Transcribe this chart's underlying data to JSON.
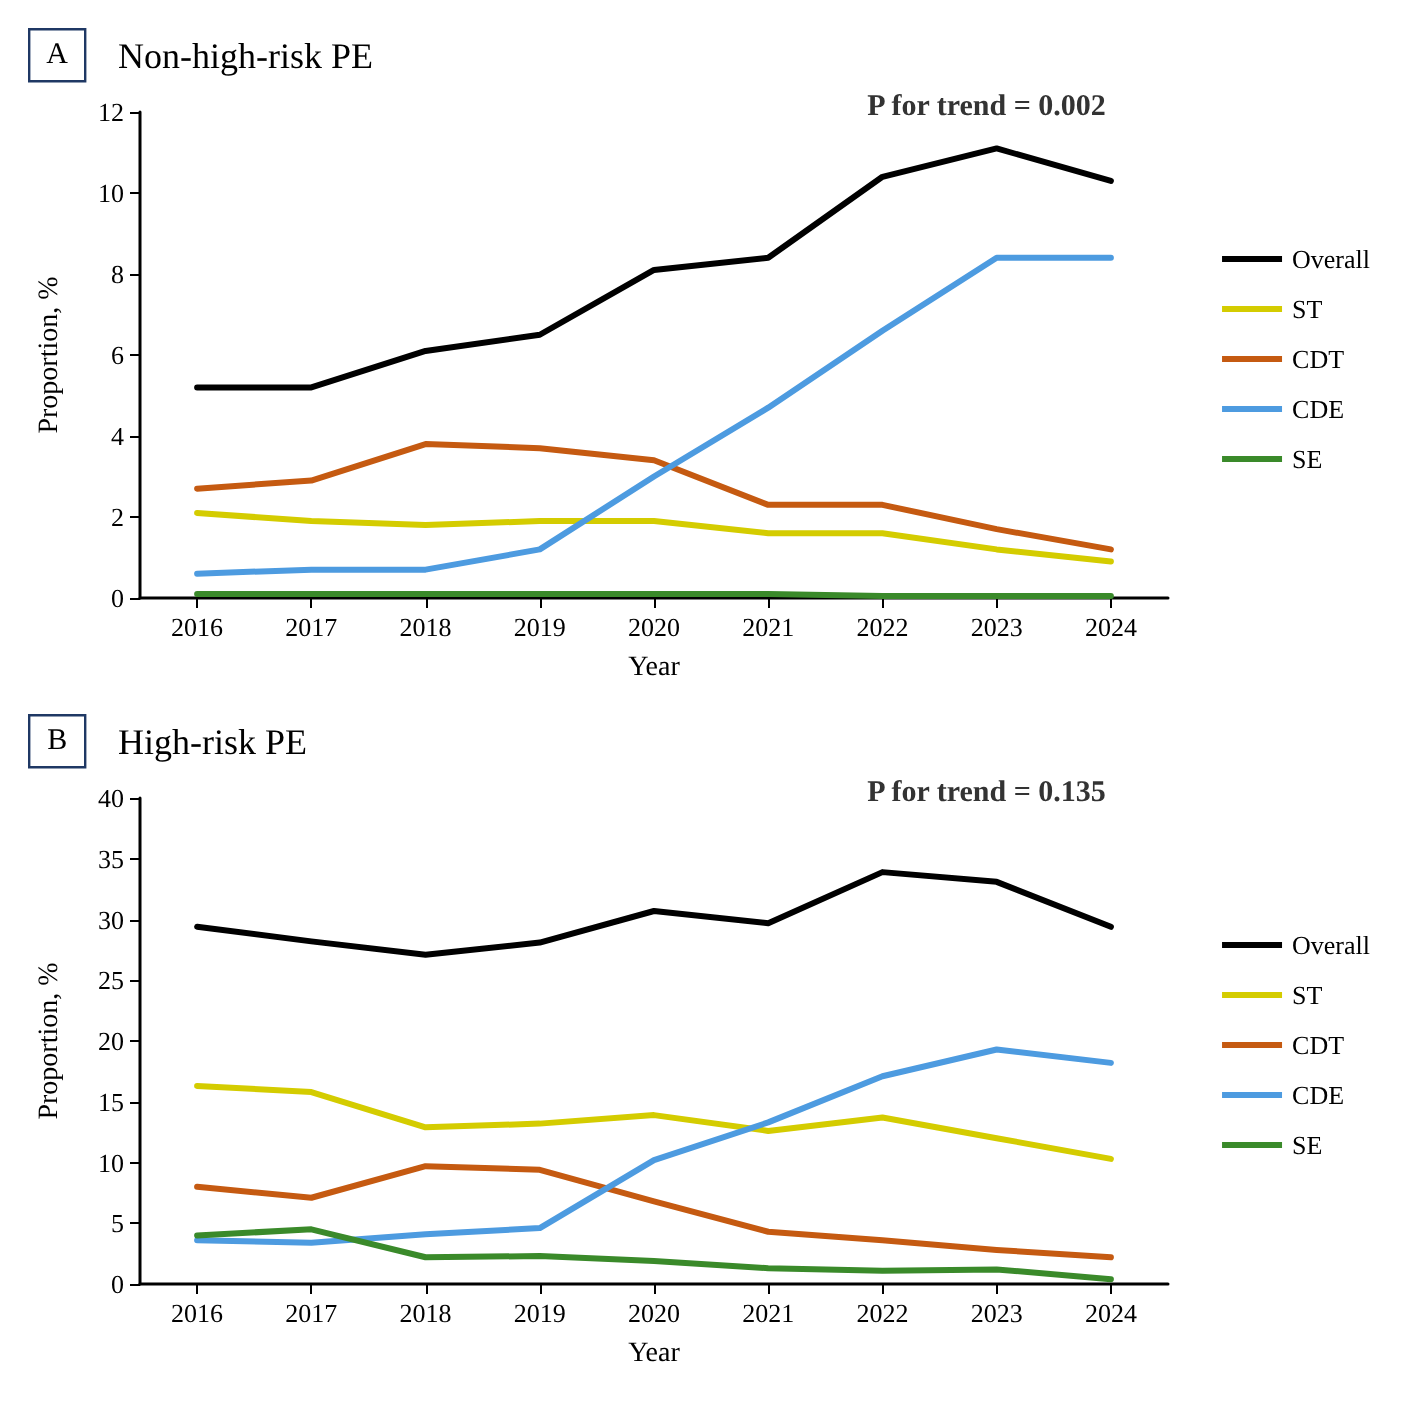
{
  "chart_data": [
    {
      "type": "line",
      "title": "Non-high-risk PE",
      "xlabel": "Year",
      "ylabel": "Proportion, %",
      "annotations": [
        "A",
        "P for trend = 0.002"
      ],
      "categories": [
        "2016",
        "2017",
        "2018",
        "2019",
        "2020",
        "2021",
        "2022",
        "2023",
        "2024"
      ],
      "ylim": [
        0,
        12
      ],
      "yticks": [
        0,
        2,
        4,
        6,
        8,
        10,
        12
      ],
      "grid": false,
      "legend": "right",
      "marker": "none",
      "line_style": "solid",
      "series": [
        {
          "name": "Overall",
          "color": "#000000",
          "values": [
            5.2,
            5.2,
            6.1,
            6.5,
            8.1,
            8.4,
            10.4,
            11.1,
            10.3
          ]
        },
        {
          "name": "ST",
          "color": "#d4cc00",
          "values": [
            2.1,
            1.9,
            1.8,
            1.9,
            1.9,
            1.6,
            1.6,
            1.2,
            0.9
          ]
        },
        {
          "name": "CDT",
          "color": "#c55a11",
          "values": [
            2.7,
            2.9,
            3.8,
            3.7,
            3.4,
            2.3,
            2.3,
            1.7,
            1.2
          ]
        },
        {
          "name": "CDE",
          "color": "#4d9be0",
          "values": [
            0.6,
            0.7,
            0.7,
            1.2,
            3.0,
            4.7,
            6.6,
            8.4,
            8.4
          ]
        },
        {
          "name": "SE",
          "color": "#3a8a2a",
          "values": [
            0.1,
            0.1,
            0.1,
            0.1,
            0.1,
            0.1,
            0.05,
            0.05,
            0.05
          ]
        }
      ]
    },
    {
      "type": "line",
      "title": "High-risk PE",
      "xlabel": "Year",
      "ylabel": "Proportion, %",
      "annotations": [
        "B",
        "P for trend = 0.135"
      ],
      "categories": [
        "2016",
        "2017",
        "2018",
        "2019",
        "2020",
        "2021",
        "2022",
        "2023",
        "2024"
      ],
      "ylim": [
        0,
        40
      ],
      "yticks": [
        0,
        5,
        10,
        15,
        20,
        25,
        30,
        35,
        40
      ],
      "grid": false,
      "legend": "right",
      "marker": "none",
      "line_style": "solid",
      "series": [
        {
          "name": "Overall",
          "color": "#000000",
          "values": [
            29.4,
            28.2,
            27.1,
            28.1,
            30.7,
            29.7,
            33.9,
            33.1,
            29.4
          ]
        },
        {
          "name": "ST",
          "color": "#d4cc00",
          "values": [
            16.3,
            15.8,
            12.9,
            13.2,
            13.9,
            12.6,
            13.7,
            12.0,
            10.3
          ]
        },
        {
          "name": "CDT",
          "color": "#c55a11",
          "values": [
            8.0,
            7.1,
            9.7,
            9.4,
            6.8,
            4.3,
            3.6,
            2.8,
            2.2
          ]
        },
        {
          "name": "CDE",
          "color": "#4d9be0",
          "values": [
            3.6,
            3.4,
            4.1,
            4.6,
            10.2,
            13.3,
            17.1,
            19.3,
            18.2
          ]
        },
        {
          "name": "SE",
          "color": "#3a8a2a",
          "values": [
            4.0,
            4.5,
            2.2,
            2.3,
            1.9,
            1.3,
            1.1,
            1.2,
            0.4
          ]
        }
      ]
    }
  ]
}
